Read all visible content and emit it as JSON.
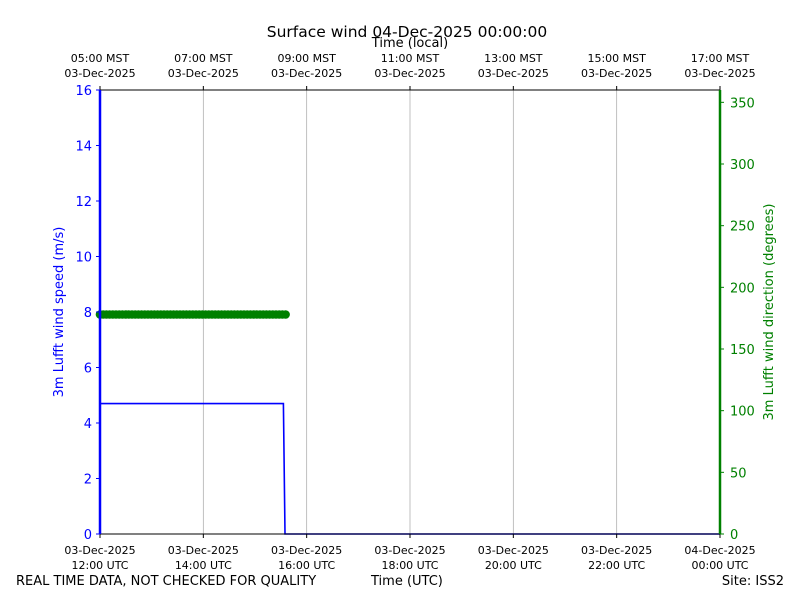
{
  "chart_data": {
    "type": "line",
    "title": "Surface wind 04-Dec-2025 00:00:00",
    "top_xlabel": "Time (local)",
    "xlabel": "Time (UTC)",
    "ylabel_left": "3m Lufft wind speed (m/s)",
    "ylabel_right": "3m Lufft wind direction (degrees)",
    "x_range_utc_hours": [
      12,
      24
    ],
    "ylim_left": [
      0,
      16
    ],
    "ylim_right": [
      0,
      360
    ],
    "yticks_left": [
      "0",
      "2",
      "4",
      "6",
      "8",
      "10",
      "12",
      "14",
      "16"
    ],
    "yticks_right": [
      "0",
      "50",
      "100",
      "150",
      "200",
      "250",
      "300",
      "350"
    ],
    "xticks_bottom": [
      {
        "date": "03-Dec-2025",
        "time": "12:00 UTC"
      },
      {
        "date": "03-Dec-2025",
        "time": "14:00 UTC"
      },
      {
        "date": "03-Dec-2025",
        "time": "16:00 UTC"
      },
      {
        "date": "03-Dec-2025",
        "time": "18:00 UTC"
      },
      {
        "date": "03-Dec-2025",
        "time": "20:00 UTC"
      },
      {
        "date": "03-Dec-2025",
        "time": "22:00 UTC"
      },
      {
        "date": "04-Dec-2025",
        "time": "00:00 UTC"
      }
    ],
    "xticks_top": [
      {
        "time": "05:00 MST",
        "date": "03-Dec-2025"
      },
      {
        "time": "07:00 MST",
        "date": "03-Dec-2025"
      },
      {
        "time": "09:00 MST",
        "date": "03-Dec-2025"
      },
      {
        "time": "11:00 MST",
        "date": "03-Dec-2025"
      },
      {
        "time": "13:00 MST",
        "date": "03-Dec-2025"
      },
      {
        "time": "15:00 MST",
        "date": "03-Dec-2025"
      },
      {
        "time": "17:00 MST",
        "date": "03-Dec-2025"
      }
    ],
    "grid": "vertical",
    "series": [
      {
        "axis": "left",
        "style": "line",
        "color": "#0000ff",
        "points": [
          [
            12.0,
            16.0
          ],
          [
            12.0,
            4.7
          ],
          [
            15.55,
            4.7
          ],
          [
            15.58,
            0.0
          ],
          [
            24.0,
            0.0
          ]
        ]
      },
      {
        "axis": "right",
        "style": "markers",
        "color": "#008000",
        "x_start_utc_hours": 12.0,
        "x_end_utc_hours": 15.6,
        "value": 178
      }
    ]
  },
  "footer": {
    "left_note": "REAL TIME DATA, NOT CHECKED FOR QUALITY",
    "center_label": "Time (UTC)",
    "site": "Site: ISS2"
  },
  "colors": {
    "left_axis": "#0000ff",
    "right_axis": "#008000",
    "grid": "#b0b0b0"
  }
}
